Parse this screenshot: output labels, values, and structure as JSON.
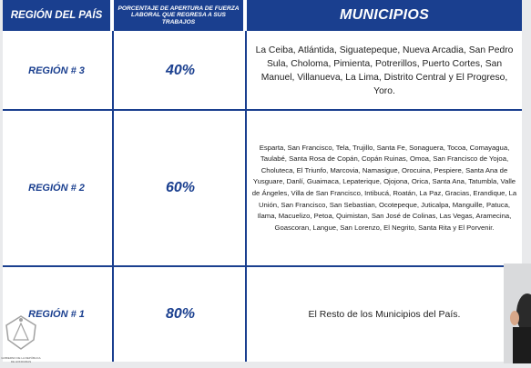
{
  "table": {
    "headers": {
      "region": "REGIÓN DEL PAÍS",
      "percent": "PORCENTAJE DE APERTURA DE FUERZA LABORAL QUE REGRESA A SUS TRABAJOS",
      "municipalities": "MUNICIPIOS"
    },
    "rows": [
      {
        "region": "REGIÓN # 3",
        "percent": "40%",
        "municipalities": "La Ceiba, Atlántida, Siguatepeque, Nueva Arcadia, San Pedro Sula, Choloma, Pimienta, Potrerillos, Puerto Cortes, San Manuel, Villanueva, La Lima, Distrito Central y El Progreso, Yoro."
      },
      {
        "region": "REGIÓN # 2",
        "percent": "60%",
        "municipalities": "Esparta, San Francisco, Tela, Trujillo, Santa Fe, Sonaguera, Tocoa, Comayagua, Taulabé, Santa Rosa de Copán, Copán Ruinas, Omoa, San Francisco de Yojoa, Choluteca, El Triunfo, Marcovia, Namasigue, Orocuina, Pespiere, Santa Ana de Yusguare, Danlí, Guaimaca, Lepaterique, Ojojona, Orica, Santa Ana, Tatumbla, Valle de Ángeles, Villa de San Francisco, Intibucá, Roatán, La Paz, Gracias, Erandique, La Unión, San Francisco, San Sebastian, Ocotepeque, Juticalpa, Manguille, Patuca, Ilama, Macuelizo, Petoa, Quimistan, San José de Colinas, Las Vegas, Aramecina, Goascoran, Langue, San Lorenzo, El Negrito, Santa Rita y El Porvenir."
      },
      {
        "region": "REGIÓN # 1",
        "percent": "80%",
        "municipalities": "El Resto de los Municipios del País."
      }
    ]
  },
  "footer": {
    "logo_text": "GOBIERNO DE LA REPÚBLICA DE HONDURAS"
  },
  "colors": {
    "header_bg": "#1a3f8f",
    "accent_text": "#1a3f8f",
    "page_bg": "#e9eaec"
  }
}
